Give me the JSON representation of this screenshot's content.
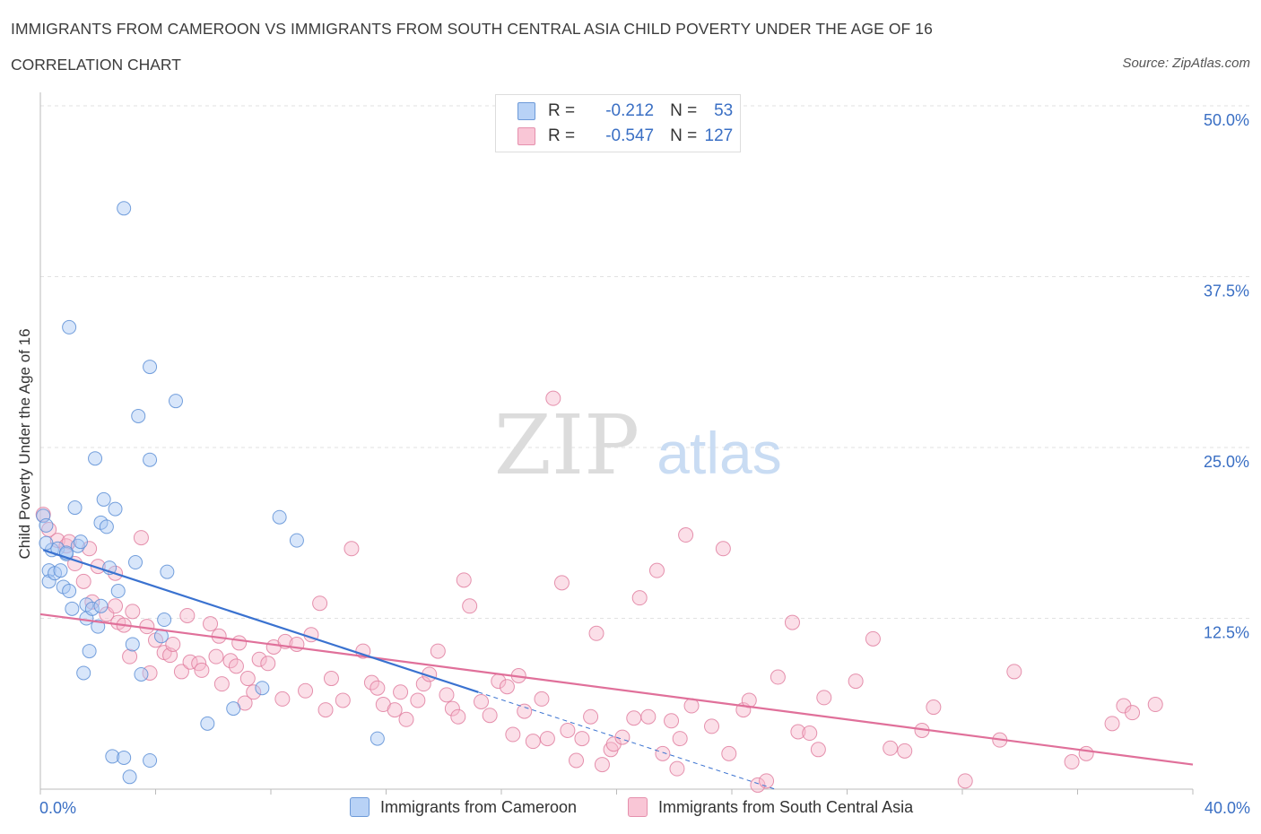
{
  "title": "IMMIGRANTS FROM CAMEROON VS IMMIGRANTS FROM SOUTH CENTRAL ASIA CHILD POVERTY UNDER THE AGE OF 16",
  "subtitle": "CORRELATION CHART",
  "source": "Source: ZipAtlas.com",
  "watermark": {
    "zip": "ZIP",
    "atlas": "atlas"
  },
  "legend": {
    "r_label": "R =",
    "n_label": "N =",
    "rows": [
      {
        "r": "-0.212",
        "n": "53"
      },
      {
        "r": "-0.547",
        "n": "127"
      }
    ]
  },
  "chart_data": {
    "type": "scatter",
    "title": "IMMIGRANTS FROM CAMEROON VS IMMIGRANTS FROM SOUTH CENTRAL ASIA CHILD POVERTY UNDER THE AGE OF 16",
    "xlabel": "",
    "ylabel": "Child Poverty Under the Age of 16",
    "xlim": [
      0,
      40
    ],
    "ylim": [
      0,
      50
    ],
    "x_tick_labels": [
      "0.0%",
      "40.0%"
    ],
    "y_ticks": [
      12.5,
      25.0,
      37.5,
      50.0
    ],
    "y_tick_labels": [
      "12.5%",
      "25.0%",
      "37.5%",
      "50.0%"
    ],
    "grid": "horizontal dashed",
    "legend_position": "top-center",
    "colors": {
      "cameroon_fill": "#a9c8f4",
      "cameroon_stroke": "#5d8fd6",
      "cameroon_line": "#3a72d0",
      "sca_fill": "#f7b9cd",
      "sca_stroke": "#e07fa0",
      "sca_line": "#e0709a",
      "tick_text": "#3a6fc4"
    },
    "series": [
      {
        "name": "Immigrants from Cameroon",
        "r": -0.212,
        "n": 53,
        "trend": {
          "x0": 0.1,
          "y0": 17.5,
          "x1": 15.2,
          "y1": 7.1,
          "dash_to_x": 25.5,
          "dash_to_y": 0.0
        },
        "points": [
          [
            0.1,
            20.0
          ],
          [
            0.2,
            19.3
          ],
          [
            0.3,
            16.0
          ],
          [
            0.3,
            15.2
          ],
          [
            0.4,
            17.5
          ],
          [
            0.5,
            15.8
          ],
          [
            0.6,
            17.6
          ],
          [
            0.7,
            16.0
          ],
          [
            0.8,
            14.8
          ],
          [
            0.9,
            17.2
          ],
          [
            1.0,
            14.5
          ],
          [
            1.1,
            13.2
          ],
          [
            1.2,
            20.6
          ],
          [
            1.3,
            17.8
          ],
          [
            1.4,
            18.1
          ],
          [
            1.5,
            8.5
          ],
          [
            1.6,
            12.5
          ],
          [
            1.6,
            13.5
          ],
          [
            1.7,
            10.1
          ],
          [
            1.8,
            13.2
          ],
          [
            1.9,
            24.2
          ],
          [
            2.0,
            11.9
          ],
          [
            2.1,
            19.5
          ],
          [
            2.1,
            13.4
          ],
          [
            2.2,
            21.2
          ],
          [
            2.3,
            19.2
          ],
          [
            2.4,
            16.2
          ],
          [
            2.5,
            2.4
          ],
          [
            2.6,
            20.5
          ],
          [
            2.7,
            14.5
          ],
          [
            2.9,
            42.5
          ],
          [
            2.9,
            2.3
          ],
          [
            3.1,
            0.9
          ],
          [
            3.2,
            10.6
          ],
          [
            3.3,
            16.6
          ],
          [
            3.4,
            27.3
          ],
          [
            3.5,
            8.4
          ],
          [
            3.8,
            2.1
          ],
          [
            3.8,
            24.1
          ],
          [
            3.8,
            30.9
          ],
          [
            4.2,
            11.2
          ],
          [
            4.3,
            12.4
          ],
          [
            4.4,
            15.9
          ],
          [
            4.7,
            28.4
          ],
          [
            5.8,
            4.8
          ],
          [
            6.7,
            5.9
          ],
          [
            7.7,
            7.4
          ],
          [
            8.3,
            19.9
          ],
          [
            8.9,
            18.2
          ],
          [
            11.7,
            3.7
          ],
          [
            0.2,
            18.0
          ],
          [
            1.0,
            33.8
          ],
          [
            0.9,
            17.3
          ]
        ]
      },
      {
        "name": "Immigrants from South Central Asia",
        "r": -0.547,
        "n": 127,
        "trend": {
          "x0": 0.0,
          "y0": 12.8,
          "x1": 40.0,
          "y1": 1.8
        },
        "points": [
          [
            0.1,
            20.1
          ],
          [
            0.3,
            19.0
          ],
          [
            0.6,
            18.2
          ],
          [
            0.9,
            17.8
          ],
          [
            1.2,
            16.5
          ],
          [
            1.5,
            15.2
          ],
          [
            1.7,
            17.6
          ],
          [
            1.8,
            13.7
          ],
          [
            2.0,
            16.3
          ],
          [
            2.3,
            12.8
          ],
          [
            2.6,
            13.4
          ],
          [
            2.7,
            12.2
          ],
          [
            2.9,
            12.0
          ],
          [
            3.1,
            9.7
          ],
          [
            3.2,
            13.0
          ],
          [
            3.5,
            18.4
          ],
          [
            3.7,
            11.9
          ],
          [
            3.8,
            8.5
          ],
          [
            4.0,
            10.9
          ],
          [
            4.3,
            10.0
          ],
          [
            4.5,
            9.8
          ],
          [
            4.6,
            10.6
          ],
          [
            4.9,
            8.6
          ],
          [
            5.1,
            12.7
          ],
          [
            5.2,
            9.3
          ],
          [
            5.5,
            9.2
          ],
          [
            5.6,
            8.7
          ],
          [
            5.9,
            12.1
          ],
          [
            6.1,
            9.7
          ],
          [
            6.2,
            11.2
          ],
          [
            6.3,
            7.7
          ],
          [
            6.6,
            9.4
          ],
          [
            6.8,
            9.0
          ],
          [
            6.9,
            10.7
          ],
          [
            7.1,
            6.3
          ],
          [
            7.2,
            8.1
          ],
          [
            7.4,
            7.1
          ],
          [
            7.6,
            9.5
          ],
          [
            7.9,
            9.2
          ],
          [
            8.1,
            10.4
          ],
          [
            8.4,
            6.6
          ],
          [
            8.5,
            10.8
          ],
          [
            8.9,
            10.6
          ],
          [
            9.2,
            7.2
          ],
          [
            9.4,
            11.3
          ],
          [
            9.7,
            13.6
          ],
          [
            9.9,
            5.8
          ],
          [
            10.1,
            8.1
          ],
          [
            10.5,
            6.5
          ],
          [
            10.8,
            17.6
          ],
          [
            11.2,
            10.1
          ],
          [
            11.5,
            7.8
          ],
          [
            11.7,
            7.4
          ],
          [
            11.9,
            6.2
          ],
          [
            12.3,
            5.8
          ],
          [
            12.5,
            7.1
          ],
          [
            12.7,
            5.1
          ],
          [
            13.1,
            6.5
          ],
          [
            13.3,
            7.7
          ],
          [
            13.5,
            8.4
          ],
          [
            13.8,
            10.1
          ],
          [
            14.1,
            6.9
          ],
          [
            14.3,
            5.9
          ],
          [
            14.5,
            5.3
          ],
          [
            14.7,
            15.3
          ],
          [
            14.9,
            13.4
          ],
          [
            15.3,
            6.4
          ],
          [
            15.6,
            5.4
          ],
          [
            15.9,
            7.9
          ],
          [
            16.2,
            7.5
          ],
          [
            16.4,
            4.0
          ],
          [
            16.6,
            8.3
          ],
          [
            16.8,
            5.7
          ],
          [
            17.1,
            3.5
          ],
          [
            17.4,
            6.6
          ],
          [
            17.6,
            3.7
          ],
          [
            17.8,
            28.6
          ],
          [
            18.1,
            15.1
          ],
          [
            18.3,
            4.3
          ],
          [
            18.6,
            2.1
          ],
          [
            18.8,
            3.7
          ],
          [
            19.1,
            5.3
          ],
          [
            19.3,
            11.4
          ],
          [
            19.5,
            1.8
          ],
          [
            19.8,
            2.9
          ],
          [
            19.9,
            3.3
          ],
          [
            20.2,
            3.8
          ],
          [
            20.6,
            5.2
          ],
          [
            20.8,
            14.0
          ],
          [
            21.1,
            5.3
          ],
          [
            21.4,
            16.0
          ],
          [
            21.6,
            2.6
          ],
          [
            21.9,
            5.0
          ],
          [
            22.1,
            1.5
          ],
          [
            22.2,
            3.7
          ],
          [
            22.4,
            18.6
          ],
          [
            22.6,
            6.1
          ],
          [
            23.3,
            4.6
          ],
          [
            23.7,
            17.6
          ],
          [
            23.9,
            2.6
          ],
          [
            24.4,
            5.8
          ],
          [
            24.6,
            6.5
          ],
          [
            24.9,
            0.3
          ],
          [
            25.2,
            0.6
          ],
          [
            25.6,
            8.2
          ],
          [
            26.1,
            12.2
          ],
          [
            26.3,
            4.2
          ],
          [
            26.7,
            4.1
          ],
          [
            27.0,
            2.9
          ],
          [
            27.2,
            6.7
          ],
          [
            28.3,
            7.9
          ],
          [
            28.9,
            11.0
          ],
          [
            29.5,
            3.0
          ],
          [
            30.0,
            2.8
          ],
          [
            30.6,
            4.3
          ],
          [
            31.0,
            6.0
          ],
          [
            32.1,
            0.6
          ],
          [
            33.3,
            3.6
          ],
          [
            33.8,
            8.6
          ],
          [
            35.8,
            2.0
          ],
          [
            36.3,
            2.6
          ],
          [
            37.2,
            4.8
          ],
          [
            37.6,
            6.1
          ],
          [
            37.9,
            5.6
          ],
          [
            38.7,
            6.2
          ],
          [
            1.0,
            18.1
          ],
          [
            2.6,
            15.8
          ]
        ]
      }
    ]
  }
}
